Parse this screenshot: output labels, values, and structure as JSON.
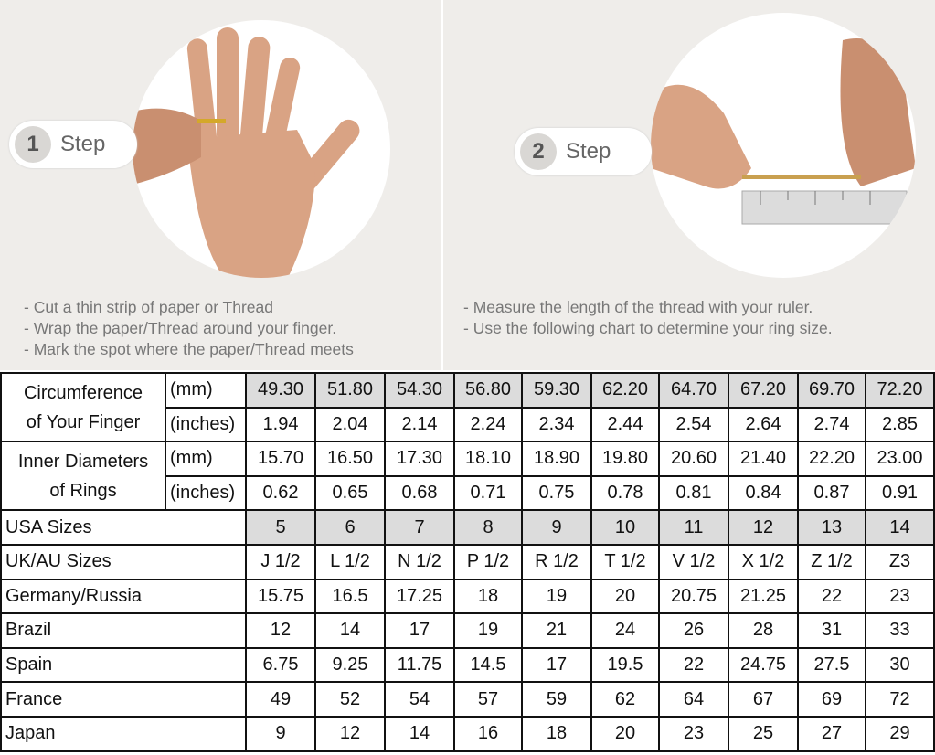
{
  "steps": [
    {
      "number": "1",
      "label": "Step",
      "bullets": [
        "- Cut a thin strip of paper or Thread",
        "- Wrap the paper/Thread around your finger.",
        "- Mark the spot where the paper/Thread meets"
      ]
    },
    {
      "number": "2",
      "label": "Step",
      "bullets": [
        "- Measure the length of the thread with your ruler.",
        "- Use the following chart to determine your ring size."
      ]
    }
  ],
  "table": {
    "circumference": {
      "label_line1": "Circumference",
      "label_line2": "of Your Finger",
      "mm_unit": "(mm)",
      "in_unit": "(inches)",
      "mm": [
        "49.30",
        "51.80",
        "54.30",
        "56.80",
        "59.30",
        "62.20",
        "64.70",
        "67.20",
        "69.70",
        "72.20"
      ],
      "inches": [
        "1.94",
        "2.04",
        "2.14",
        "2.24",
        "2.34",
        "2.44",
        "2.54",
        "2.64",
        "2.74",
        "2.85"
      ]
    },
    "inner_diameter": {
      "label_line1": "Inner Diameters",
      "label_line2": "of Rings",
      "mm_unit": "(mm)",
      "in_unit": "(inches)",
      "mm": [
        "15.70",
        "16.50",
        "17.30",
        "18.10",
        "18.90",
        "19.80",
        "20.60",
        "21.40",
        "22.20",
        "23.00"
      ],
      "inches": [
        "0.62",
        "0.65",
        "0.68",
        "0.71",
        "0.75",
        "0.78",
        "0.81",
        "0.84",
        "0.87",
        "0.91"
      ]
    },
    "rows": [
      {
        "label": "USA Sizes",
        "values": [
          "5",
          "6",
          "7",
          "8",
          "9",
          "10",
          "11",
          "12",
          "13",
          "14"
        ],
        "shaded": true
      },
      {
        "label": "UK/AU Sizes",
        "values": [
          "J 1/2",
          "L 1/2",
          "N 1/2",
          "P 1/2",
          "R 1/2",
          "T 1/2",
          "V 1/2",
          "X 1/2",
          "Z 1/2",
          "Z3"
        ]
      },
      {
        "label": "Germany/Russia",
        "values": [
          "15.75",
          "16.5",
          "17.25",
          "18",
          "19",
          "20",
          "20.75",
          "21.25",
          "22",
          "23"
        ]
      },
      {
        "label": "Brazil",
        "values": [
          "12",
          "14",
          "17",
          "19",
          "21",
          "24",
          "26",
          "28",
          "31",
          "33"
        ]
      },
      {
        "label": "Spain",
        "values": [
          "6.75",
          "9.25",
          "11.75",
          "14.5",
          "17",
          "19.5",
          "22",
          "24.75",
          "27.5",
          "30"
        ]
      },
      {
        "label": "France",
        "values": [
          "49",
          "52",
          "54",
          "57",
          "59",
          "62",
          "64",
          "67",
          "69",
          "72"
        ]
      },
      {
        "label": "Japan",
        "values": [
          "9",
          "12",
          "14",
          "16",
          "18",
          "20",
          "23",
          "25",
          "27",
          "29"
        ]
      }
    ]
  },
  "colors": {
    "shaded_cell": "#dcdcdc",
    "panel_bg": "#efedea",
    "skin": "#d9a384"
  }
}
